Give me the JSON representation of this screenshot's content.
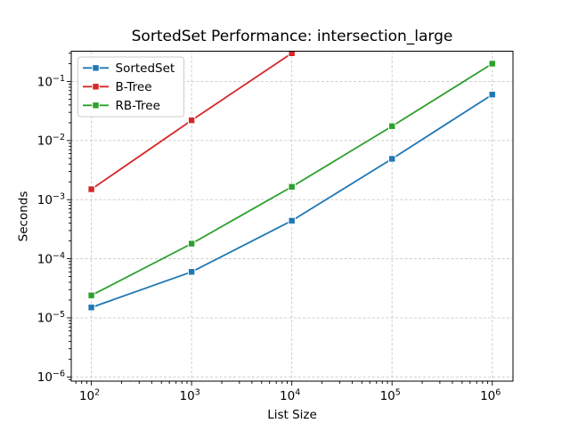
{
  "figure": {
    "background": "#ffffff",
    "frame_color": "#000000",
    "grid_color": "#c8c8c8",
    "legend_border_color": "#cccccc",
    "legend_background": "#ffffff"
  },
  "chart_data": {
    "type": "line",
    "title": "SortedSet Performance: intersection_large",
    "xlabel": "List Size",
    "ylabel": "Seconds",
    "x_scale": "log",
    "y_scale": "log",
    "xlim": [
      63,
      1610000
    ],
    "ylim": [
      8.5e-07,
      0.325
    ],
    "grid": "major, dashed",
    "legend_position": "upper-left",
    "marker": "square",
    "x_major_ticks_exp": [
      2,
      3,
      4,
      5,
      6
    ],
    "y_major_ticks_exp": [
      -6,
      -5,
      -4,
      -3,
      -2,
      -1
    ],
    "x_tick_labels": [
      "10^2",
      "10^3",
      "10^4",
      "10^5",
      "10^6"
    ],
    "y_tick_labels": [
      "10^-6",
      "10^-5",
      "10^-4",
      "10^-3",
      "10^-2",
      "10^-1"
    ],
    "series": [
      {
        "name": "SortedSet",
        "color": "#1f77b4",
        "x": [
          100,
          1000,
          10000,
          100000,
          1000000
        ],
        "y": [
          1.5e-05,
          6e-05,
          0.00044,
          0.0049,
          0.06
        ]
      },
      {
        "name": "B-Tree",
        "color": "#d62728",
        "x": [
          100,
          1000,
          10000
        ],
        "y": [
          0.0015,
          0.022,
          0.3
        ]
      },
      {
        "name": "RB-Tree",
        "color": "#2ca02c",
        "x": [
          100,
          1000,
          10000,
          100000,
          1000000
        ],
        "y": [
          2.4e-05,
          0.00018,
          0.00165,
          0.0175,
          0.2
        ]
      }
    ]
  }
}
